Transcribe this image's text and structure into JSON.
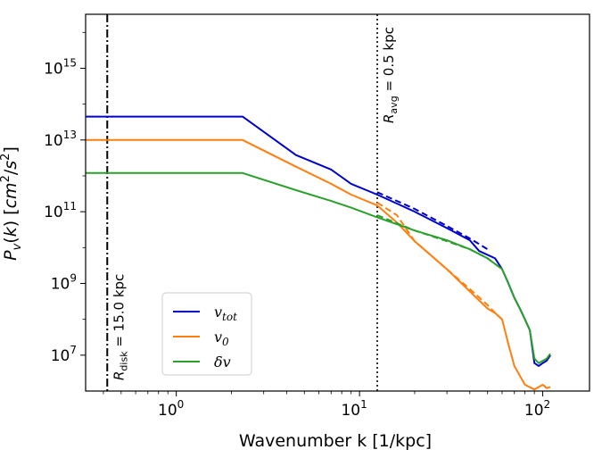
{
  "chart_data": {
    "type": "line",
    "title": "",
    "xlabel": "Wavenumber k [1/kpc]",
    "ylabel": "P_v(k) [cm²/s²]",
    "xscale": "log",
    "yscale": "log",
    "xlim": [
      0.32,
      180
    ],
    "ylim": [
      1000000.0,
      3.2e+16
    ],
    "x_ticks": [
      {
        "value": 1,
        "label": "10",
        "exp": "0"
      },
      {
        "value": 10,
        "label": "10",
        "exp": "1"
      },
      {
        "value": 100,
        "label": "10",
        "exp": "2"
      }
    ],
    "y_ticks": [
      {
        "value": 10000000.0,
        "label": "10",
        "exp": "7"
      },
      {
        "value": 1000000000.0,
        "label": "10",
        "exp": "9"
      },
      {
        "value": 100000000000.0,
        "label": "10",
        "exp": "11"
      },
      {
        "value": 10000000000000.0,
        "label": "10",
        "exp": "13"
      },
      {
        "value": 1000000000000000.0,
        "label": "10",
        "exp": "15"
      }
    ],
    "legend_position": "lower-left",
    "series": [
      {
        "name": "v_tot",
        "label_main": "v",
        "label_sub": "tot",
        "color": "#0000cc",
        "style": "solid",
        "x": [
          0.32,
          2.3,
          4.5,
          7,
          9,
          12.5,
          20,
          30,
          40,
          45,
          55,
          60,
          65,
          70,
          75,
          80,
          85,
          90,
          95,
          100,
          105,
          110
        ],
        "y": [
          45000000000000.0,
          45000000000000.0,
          3800000000000.0,
          1500000000000.0,
          600000000000.0,
          300000000000.0,
          100000000000.0,
          35000000000.0,
          16000000000.0,
          8000000000.0,
          5000000000.0,
          2500000000.0,
          1000000000.0,
          400000000.0,
          200000000.0,
          100000000.0,
          50000000.0,
          6000000.0,
          5000000.0,
          6000000.0,
          7000000.0,
          10000000.0
        ]
      },
      {
        "name": "v_0",
        "label_main": "v",
        "label_sub": "0",
        "color": "#ff7f0e",
        "style": "solid",
        "x": [
          0.32,
          2.3,
          4.5,
          7,
          9,
          12.5,
          16,
          20,
          30,
          40,
          50,
          55,
          60,
          65,
          70,
          80,
          90,
          100,
          105,
          110
        ],
        "y": [
          10000000000000.0,
          10000000000000.0,
          1800000000000.0,
          600000000000.0,
          300000000000.0,
          150000000000.0,
          50000000000.0,
          15000000000.0,
          2500000000.0,
          600000000.0,
          200000000.0,
          150000000.0,
          100000000.0,
          20000000.0,
          5000000.0,
          1500000.0,
          1100000.0,
          1500000.0,
          1200000.0,
          1300000.0
        ]
      },
      {
        "name": "δv",
        "label_main": "δv",
        "label_sub": "",
        "color": "#2ca02c",
        "style": "solid",
        "x": [
          0.32,
          2.3,
          4.5,
          7,
          9,
          12.5,
          20,
          30,
          40,
          50,
          60,
          65,
          70,
          75,
          80,
          85,
          90,
          95,
          100,
          105,
          110
        ],
        "y": [
          1200000000000.0,
          1200000000000.0,
          400000000000.0,
          200000000000.0,
          130000000000.0,
          70000000000.0,
          30000000000.0,
          16000000000.0,
          9000000000.0,
          5000000000.0,
          2500000000.0,
          1000000000.0,
          400000000.0,
          200000000.0,
          100000000.0,
          50000000.0,
          8000000.0,
          6000000.0,
          7000000.0,
          8000000.0,
          11000000.0
        ]
      },
      {
        "name": "v_tot (dashed)",
        "color": "#0000cc",
        "style": "dashed",
        "in_legend": false,
        "x": [
          12.5,
          20,
          30,
          40,
          50
        ],
        "y": [
          350000000000.0,
          120000000000.0,
          40000000000.0,
          18000000000.0,
          9000000000.0
        ]
      },
      {
        "name": "v_0 (dashed)",
        "color": "#ff7f0e",
        "style": "dashed",
        "in_legend": false,
        "x": [
          12.5,
          16,
          20,
          30,
          40,
          50,
          55,
          60
        ],
        "y": [
          180000000000.0,
          80000000000.0,
          15000000000.0,
          2500000000.0,
          700000000.0,
          250000000.0,
          150000000.0,
          100000000.0
        ]
      },
      {
        "name": "δv (dashed)",
        "color": "#2ca02c",
        "style": "dashed",
        "in_legend": false,
        "x": [
          12.5,
          20,
          30,
          40,
          50,
          55,
          60
        ],
        "y": [
          80000000000.0,
          30000000000.0,
          15000000000.0,
          9000000000.0,
          5000000000.0,
          3500000000.0,
          2500000000.0
        ]
      }
    ],
    "vlines": [
      {
        "name": "R_disk",
        "x": 0.42,
        "style": "dashdot",
        "label_main": "R",
        "label_sub": "disk",
        "label_rest": " = 15.0 kpc"
      },
      {
        "name": "R_avg",
        "x": 12.5,
        "style": "dotted",
        "label_main": "R",
        "label_sub": "avg",
        "label_rest": " = 0.5 kpc"
      }
    ]
  }
}
